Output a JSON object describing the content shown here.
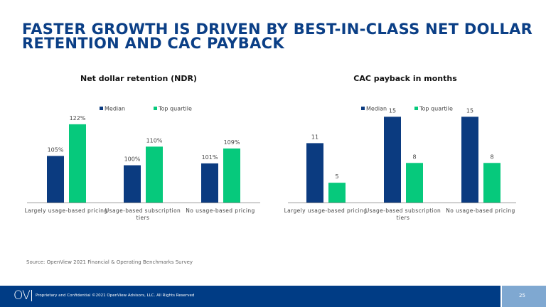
{
  "title": "FASTER GROWTH IS DRIVEN BY BEST-IN-CLASS NET DOLLAR RETENTION AND CAC PAYBACK",
  "colors": {
    "median": "#0b3b80",
    "top_quartile": "#06c97c",
    "title": "#0b3f86",
    "footer": "#003c85"
  },
  "chart_data": [
    {
      "type": "bar",
      "title": "Net dollar retention (NDR)",
      "categories": [
        "Largely usage-based pricing",
        "Usage-based subscription tiers",
        "No usage-based pricing"
      ],
      "series": [
        {
          "name": "Median",
          "values": [
            105,
            100,
            101
          ],
          "labels": [
            "105%",
            "100%",
            "101%"
          ]
        },
        {
          "name": "Top quartile",
          "values": [
            122,
            110,
            109
          ],
          "labels": [
            "122%",
            "110%",
            "109%"
          ]
        }
      ],
      "ylim": [
        80,
        125
      ],
      "legend": "top",
      "grid": false
    },
    {
      "type": "bar",
      "title": "CAC payback in months",
      "categories": [
        "Largely usage-based pricing",
        "Usage-based subscription tiers",
        "No usage-based pricing"
      ],
      "series": [
        {
          "name": "Median",
          "values": [
            11,
            15,
            15
          ],
          "labels": [
            "11",
            "15",
            "15"
          ]
        },
        {
          "name": "Top quartile",
          "values": [
            5,
            8,
            8
          ],
          "labels": [
            "5",
            "8",
            "8"
          ]
        }
      ],
      "ylim": [
        2,
        16
      ],
      "legend": "top",
      "grid": false
    }
  ],
  "source": "Source: OpenView 2021 Financial & Operating Benchmarks Survey",
  "footer": {
    "logo": "OV",
    "legal": "Proprietary and Confidential ©2021 OpenView Advisors, LLC. All Rights Reserved",
    "page": "25"
  }
}
